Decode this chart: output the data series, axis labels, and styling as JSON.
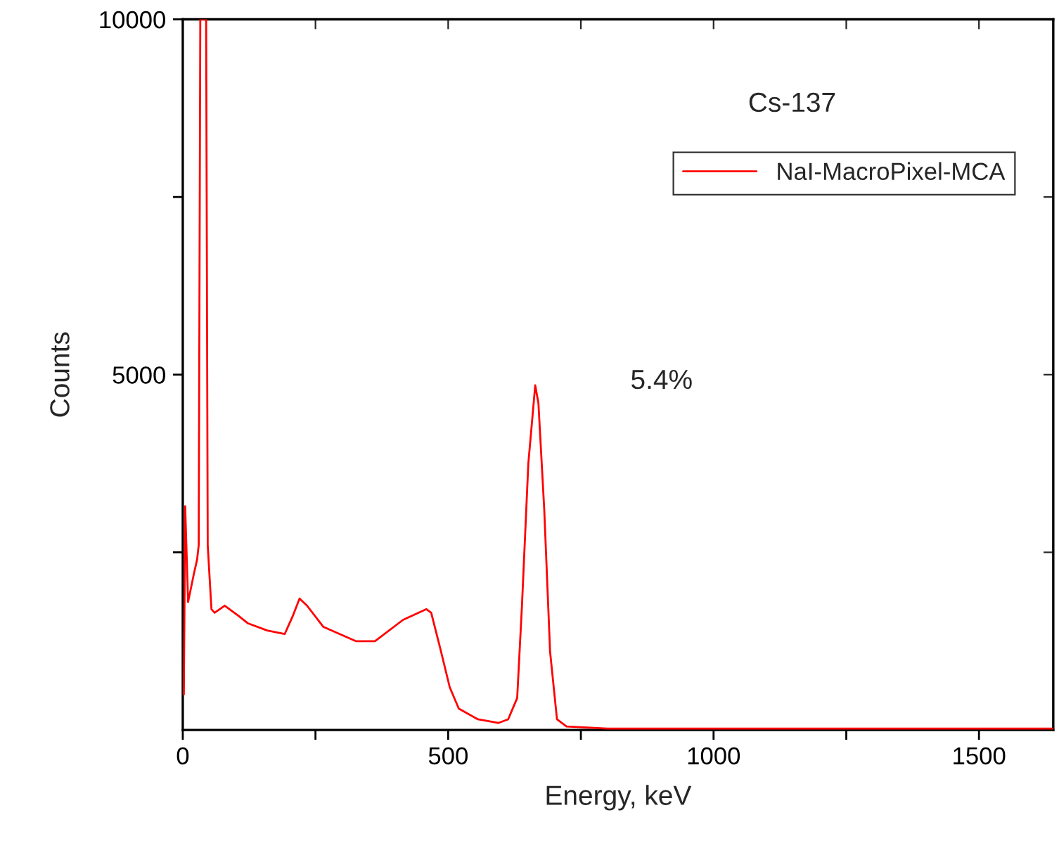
{
  "chart_data": {
    "type": "line",
    "xlabel": "Energy, keV",
    "ylabel": "Counts",
    "annotations": [
      "Cs-137",
      "5.4%"
    ],
    "series": [
      {
        "name": "NaI-MacroPixel-MCA",
        "color": "#ff0000",
        "x": [
          2,
          4.5,
          10,
          21,
          27,
          30,
          33,
          44,
          47,
          54,
          60,
          79,
          106,
          123,
          159,
          192,
          207,
          220,
          234,
          265,
          326,
          362,
          415,
          459,
          468,
          485,
          503,
          520,
          556,
          595,
          613,
          630,
          639,
          651,
          664,
          670,
          681,
          692,
          705,
          723,
          800,
          1000,
          1200,
          1400,
          1640
        ],
        "values": [
          500,
          3150,
          1800,
          2200,
          2400,
          2600,
          10000,
          10000,
          2600,
          1700,
          1650,
          1750,
          1600,
          1500,
          1400,
          1350,
          1600,
          1850,
          1750,
          1450,
          1250,
          1250,
          1550,
          1700,
          1650,
          1150,
          600,
          300,
          150,
          100,
          150,
          450,
          1750,
          3750,
          4850,
          4600,
          3100,
          1100,
          150,
          50,
          20,
          20,
          20,
          20,
          20
        ]
      }
    ],
    "xlim": [
      0,
      1640
    ],
    "ylim": [
      0,
      10000
    ],
    "xticks": [
      0,
      {
        "value": 250,
        "label": null
      },
      500,
      {
        "value": 750,
        "label": null
      },
      1000,
      {
        "value": 1250,
        "label": null
      },
      1500
    ],
    "yticks": [
      {
        "value": 2500,
        "label": null
      },
      5000,
      {
        "value": 7500,
        "label": null
      },
      10000
    ],
    "legend": "top right",
    "grid": false,
    "marker": "none",
    "line_style": "solid"
  }
}
